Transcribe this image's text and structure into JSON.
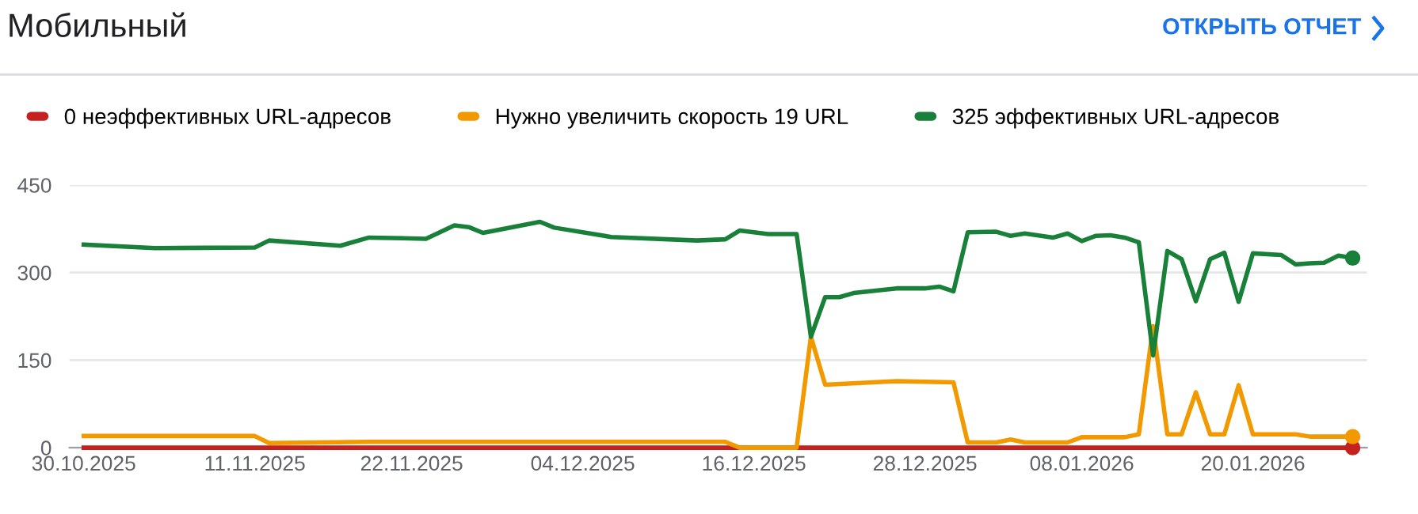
{
  "chart_data": {
    "type": "line",
    "title": "Мобильный",
    "annotations": [
      "ОТКРЫТЬ ОТЧЕТ"
    ],
    "series": [
      {
        "name": "0 неэффективных URL-адресов",
        "color": "#c5221f",
        "x": [
          "2025-10-30",
          "2026-01-27"
        ],
        "values": [
          0,
          0
        ]
      },
      {
        "name": "Нужно увеличить скорость 19 URL",
        "color": "#f29900",
        "x": [
          "2025-10-30",
          "2025-11-11",
          "2025-11-12",
          "2025-11-19",
          "2025-12-14",
          "2025-12-15",
          "2025-12-19",
          "2025-12-20",
          "2025-12-21",
          "2025-12-26",
          "2025-12-30",
          "2025-12-31",
          "2026-01-02",
          "2026-01-03",
          "2026-01-04",
          "2026-01-07",
          "2026-01-08",
          "2026-01-11",
          "2026-01-12",
          "2026-01-13",
          "2026-01-14",
          "2026-01-15",
          "2026-01-16",
          "2026-01-17",
          "2026-01-18",
          "2026-01-19",
          "2026-01-20",
          "2026-01-23",
          "2026-01-24",
          "2026-01-27"
        ],
        "values": [
          20,
          20,
          8,
          10,
          10,
          0,
          0,
          190,
          108,
          114,
          112,
          9,
          9,
          14,
          9,
          9,
          18,
          18,
          23,
          208,
          23,
          23,
          95,
          23,
          23,
          107,
          23,
          23,
          19,
          19
        ]
      },
      {
        "name": "325 эффективных URL-адресов",
        "color": "#188038",
        "x": [
          "2025-10-30",
          "2025-11-04",
          "2025-11-11",
          "2025-11-12",
          "2025-11-17",
          "2025-11-19",
          "2025-11-23",
          "2025-11-25",
          "2025-11-26",
          "2025-11-27",
          "2025-12-01",
          "2025-12-02",
          "2025-12-06",
          "2025-12-12",
          "2025-12-14",
          "2025-12-15",
          "2025-12-17",
          "2025-12-19",
          "2025-12-20",
          "2025-12-21",
          "2025-12-22",
          "2025-12-23",
          "2025-12-26",
          "2025-12-28",
          "2025-12-29",
          "2025-12-30",
          "2025-12-31",
          "2026-01-02",
          "2026-01-03",
          "2026-01-04",
          "2026-01-06",
          "2026-01-07",
          "2026-01-08",
          "2026-01-09",
          "2026-01-10",
          "2026-01-11",
          "2026-01-12",
          "2026-01-13",
          "2026-01-14",
          "2026-01-15",
          "2026-01-16",
          "2026-01-17",
          "2026-01-18",
          "2026-01-19",
          "2026-01-20",
          "2026-01-22",
          "2026-01-23",
          "2026-01-24",
          "2026-01-25",
          "2026-01-26",
          "2026-01-27"
        ],
        "values": [
          348,
          342,
          343,
          355,
          346,
          360,
          358,
          381,
          378,
          368,
          387,
          377,
          361,
          355,
          357,
          372,
          366,
          366,
          190,
          258,
          258,
          265,
          273,
          273,
          276,
          268,
          369,
          370,
          363,
          367,
          360,
          367,
          354,
          363,
          364,
          360,
          352,
          158,
          337,
          323,
          251,
          323,
          334,
          250,
          333,
          330,
          314,
          316,
          317,
          329,
          325
        ]
      }
    ],
    "xlim": [
      "2025-10-29",
      "2026-01-28"
    ],
    "xticks": [
      {
        "value": "2025-10-30",
        "label": "30.10.2025"
      },
      {
        "value": "2025-11-11",
        "label": "11.11.2025"
      },
      {
        "value": "2025-11-22",
        "label": "22.11.2025"
      },
      {
        "value": "2025-12-04",
        "label": "04.12.2025"
      },
      {
        "value": "2025-12-16",
        "label": "16.12.2025"
      },
      {
        "value": "2025-12-28",
        "label": "28.12.2025"
      },
      {
        "value": "2026-01-08",
        "label": "08.01.2026"
      },
      {
        "value": "2026-01-20",
        "label": "20.01.2026"
      }
    ],
    "ylim": [
      0,
      450
    ],
    "yticks": [
      0,
      150,
      300,
      450
    ],
    "grid": "y",
    "legend": "top",
    "line_style": "solid"
  }
}
